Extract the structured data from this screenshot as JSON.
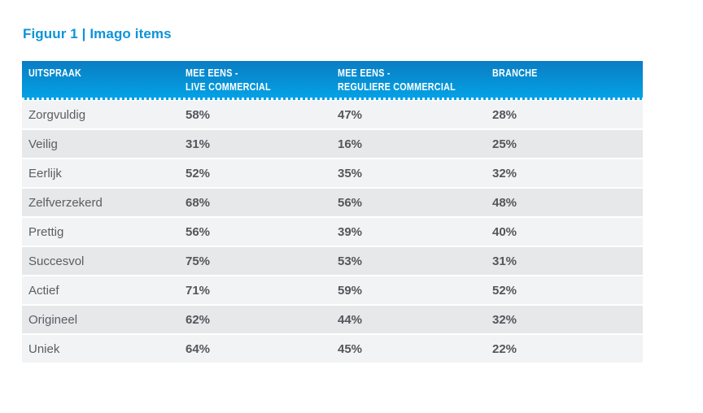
{
  "title": "Figuur 1 | Imago items",
  "table": {
    "headers": [
      [
        "UITSPRAAK",
        ""
      ],
      [
        "MEE EENS -",
        "LIVE COMMERCIAL"
      ],
      [
        "MEE EENS -",
        "REGULIERE COMMERCIAL"
      ],
      [
        "BRANCHE",
        ""
      ]
    ],
    "rows": [
      [
        "Zorgvuldig",
        "58%",
        "47%",
        "28%"
      ],
      [
        "Veilig",
        "31%",
        "16%",
        "25%"
      ],
      [
        "Eerlijk",
        "52%",
        "35%",
        "32%"
      ],
      [
        "Zelfverzekerd",
        "68%",
        "56%",
        "48%"
      ],
      [
        "Prettig",
        "56%",
        "39%",
        "40%"
      ],
      [
        "Succesvol",
        "75%",
        "53%",
        "31%"
      ],
      [
        "Actief",
        "71%",
        "59%",
        "52%"
      ],
      [
        "Origineel",
        "62%",
        "44%",
        "32%"
      ],
      [
        "Uniek",
        "64%",
        "45%",
        "22%"
      ]
    ]
  },
  "colors": {
    "title_blue": "#0d93da",
    "header_gradient_top": "#0a7dc3",
    "header_gradient_bottom": "#03a3e6",
    "row_light": "#f2f3f5",
    "row_dark": "#e7e8ea",
    "label_text": "#5b5d62",
    "value_text": "#55565b",
    "header_text": "#ffffff"
  }
}
